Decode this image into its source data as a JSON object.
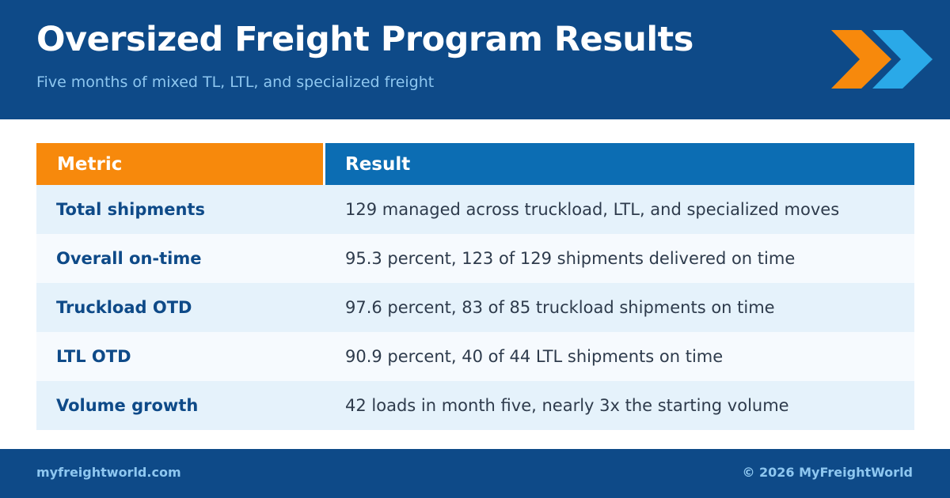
{
  "header": {
    "title": "Oversized Freight Program Results",
    "subtitle": "Five months of mixed TL, LTL, and specialized freight",
    "logo_icon": "double-chevron-right-icon"
  },
  "table": {
    "columns": [
      "Metric",
      "Result"
    ],
    "rows": [
      {
        "metric": "Total shipments",
        "result": "129 managed across truckload, LTL, and specialized moves"
      },
      {
        "metric": "Overall on-time",
        "result": "95.3 percent, 123 of 129 shipments delivered on time"
      },
      {
        "metric": "Truckload OTD",
        "result": "97.6 percent, 83 of 85 truckload shipments on time"
      },
      {
        "metric": "LTL OTD",
        "result": "90.9 percent, 40 of 44 LTL shipments on time"
      },
      {
        "metric": "Volume growth",
        "result": "42 loads in month five, nearly 3x the starting volume"
      }
    ]
  },
  "footer": {
    "website": "myfreightworld.com",
    "copyright": "© 2026 MyFreightWorld"
  },
  "colors": {
    "navy": "#0e4a88",
    "orange": "#f7890c",
    "blue": "#0c6db3",
    "light_blue": "#2aa9e8",
    "row_odd": "#e5f2fb",
    "row_even": "#f6fafe"
  }
}
